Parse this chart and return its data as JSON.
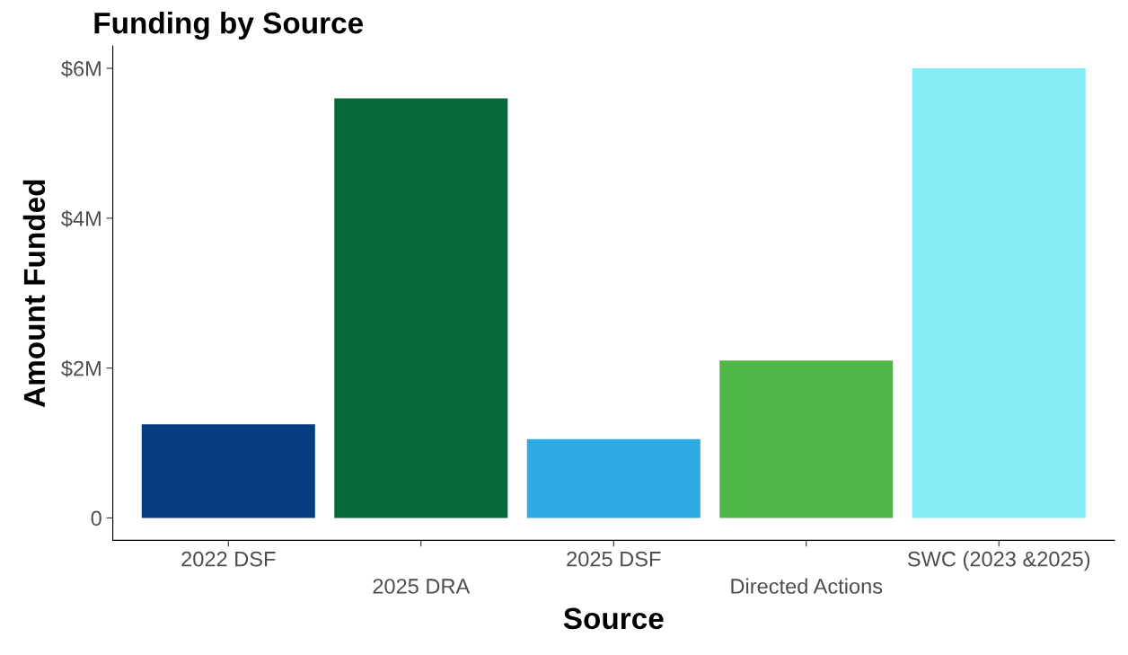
{
  "chart_data": {
    "type": "bar",
    "title": "Funding by Source",
    "xlabel": "Source",
    "ylabel": "Amount Funded",
    "categories": [
      "2022 DSF",
      "2025 DRA",
      "2025 DSF",
      "Directed Actions",
      "SWC (2023 &2025)"
    ],
    "values": [
      1.25,
      5.6,
      1.05,
      2.1,
      6.0
    ],
    "colors": [
      "#043d80",
      "#066938",
      "#2eaae2",
      "#50b848",
      "#84ecf5"
    ],
    "ylim": [
      -0.3,
      6.3
    ],
    "yticks": [
      0,
      {
        "value": 2,
        "label": "$2M"
      },
      {
        "value": 4,
        "label": "$4M"
      },
      {
        "value": 6,
        "label": "$6M"
      }
    ],
    "grid": false,
    "legend": false
  }
}
